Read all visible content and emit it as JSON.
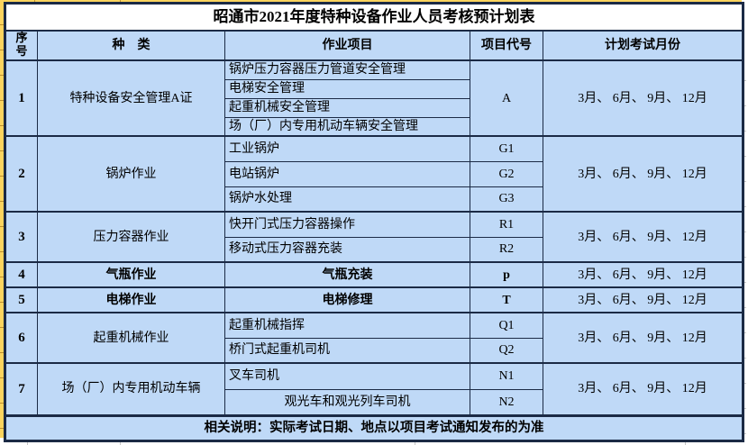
{
  "title": "昭通市2021年度特种设备作业人员考核预计划表",
  "header": {
    "index": "序号",
    "category": "种　类",
    "project": "作业项目",
    "code": "项目代号",
    "months": "计划考试月份"
  },
  "groups": [
    {
      "index": "1",
      "category": "特种设备安全管理A证",
      "code": "A",
      "code_merged": true,
      "months": "3月、 6月、 9月、 12月",
      "items": [
        {
          "project": "锅炉压力容器压力管道安全管理"
        },
        {
          "project": "电梯安全管理"
        },
        {
          "project": "起重机械安全管理"
        },
        {
          "project": "场（厂）内专用机动车辆安全管理"
        }
      ]
    },
    {
      "index": "2",
      "category": "锅炉作业",
      "months": "3月、 6月、 9月、 12月",
      "items": [
        {
          "project": "工业锅炉",
          "code": "G1"
        },
        {
          "project": "电站锅炉",
          "code": "G2"
        },
        {
          "project": "锅炉水处理",
          "code": "G3"
        }
      ]
    },
    {
      "index": "3",
      "category": "压力容器作业",
      "months": "3月、 6月、 9月、 12月",
      "items": [
        {
          "project": "快开门式压力容器操作",
          "code": "R1"
        },
        {
          "project": "移动式压力容器充装",
          "code": "R2"
        }
      ]
    },
    {
      "index": "4",
      "category": "气瓶作业",
      "bold": true,
      "months": "3月、 6月、 9月、 12月",
      "items": [
        {
          "project": "气瓶充装",
          "code": "p",
          "center": true
        }
      ]
    },
    {
      "index": "5",
      "category": "电梯作业",
      "bold": true,
      "months": "3月、 6月、 9月、 12月",
      "items": [
        {
          "project": "电梯修理",
          "code": "T",
          "center": true
        }
      ]
    },
    {
      "index": "6",
      "category": "起重机械作业",
      "months": "3月、 6月、 9月、 12月",
      "items": [
        {
          "project": "起重机械指挥",
          "code": "Q1"
        },
        {
          "project": "桥门式起重机司机",
          "code": "Q2"
        }
      ]
    },
    {
      "index": "7",
      "category": "场（厂）内专用机动车辆",
      "months": "3月、 6月、 9月、 12月",
      "items": [
        {
          "project": "叉车司机",
          "code": "N1"
        },
        {
          "project": "观光车和观光列车司机",
          "code": "N2",
          "center": true
        }
      ]
    }
  ],
  "footer_note": "相关说明：实际考试日期、地点以项目考试通知发布的为准",
  "colors": {
    "cell_blue": "#BFD9F7",
    "title_bg": "#FFFFFF",
    "border": "#1B2A45",
    "edge_yellow": "#FCD45E",
    "edge_yellow_tick": "#BD8F2F",
    "grid_gray": "#C6C6C6",
    "text": "#000000"
  }
}
